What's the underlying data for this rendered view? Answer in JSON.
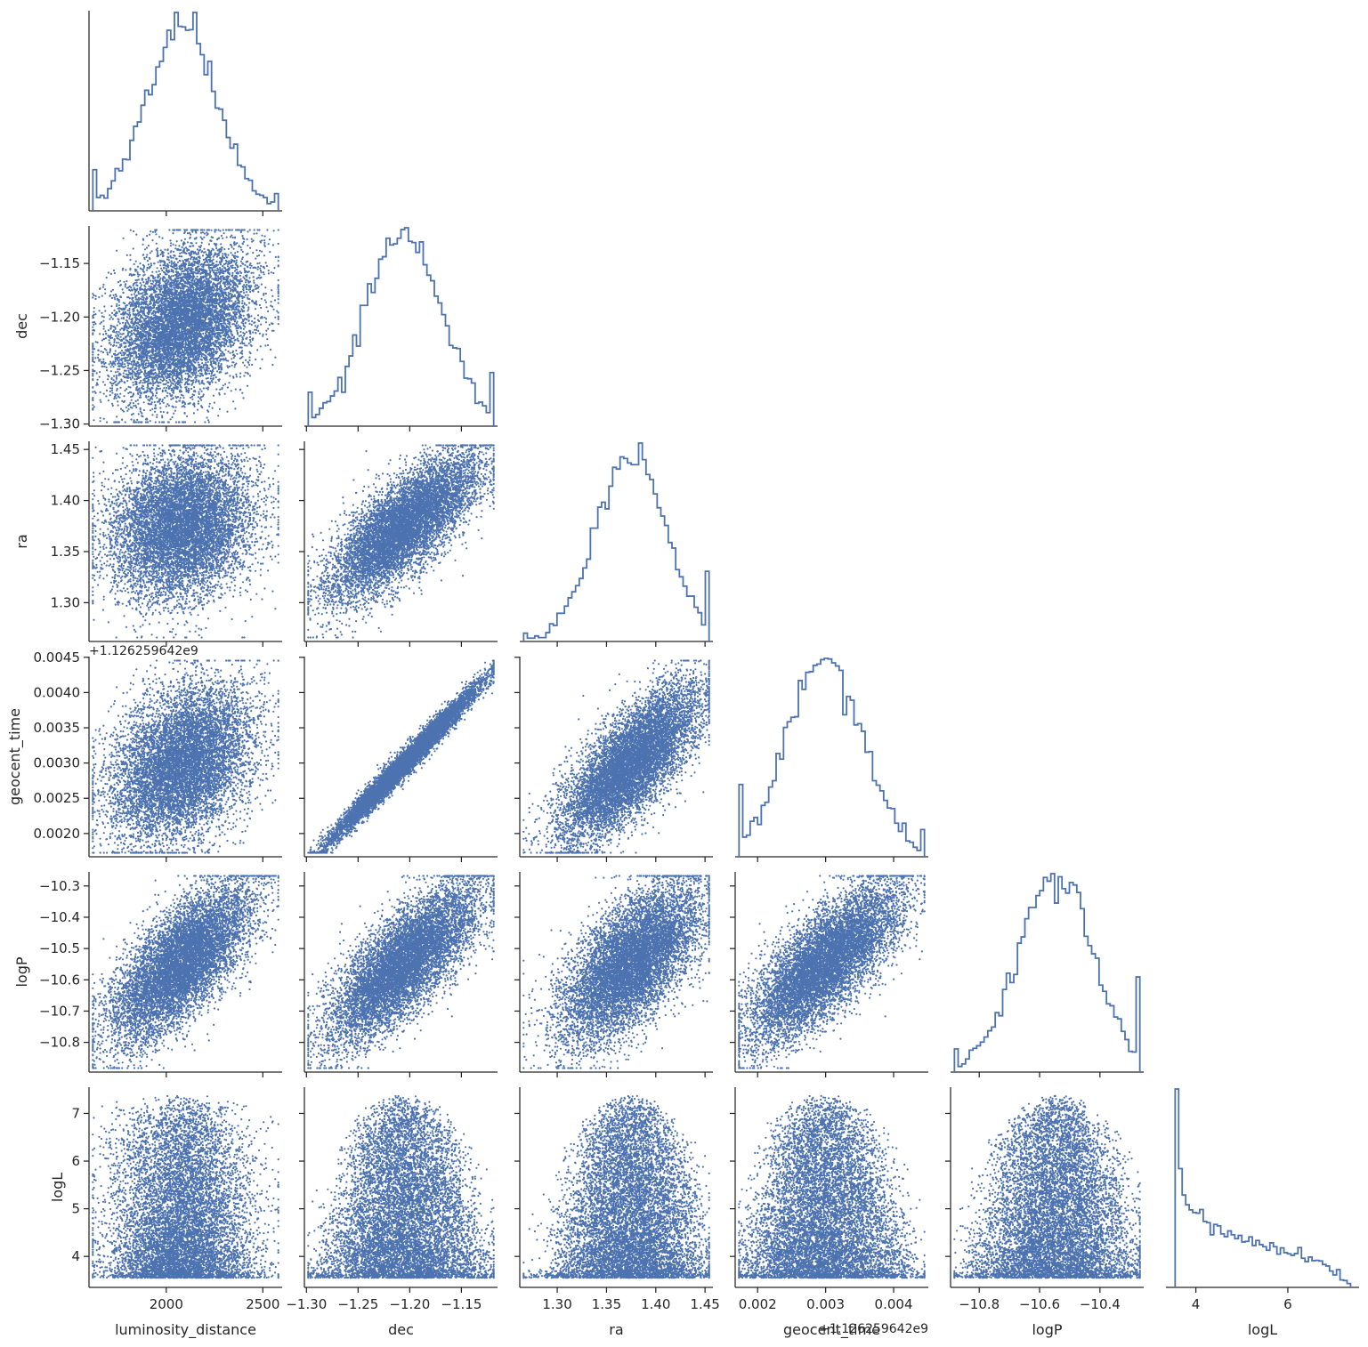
{
  "chart_data": {
    "type": "scatter",
    "title": "",
    "plot_kind": "corner (pair) plot: marginal step histograms on diagonal, scatter plots in lower triangle",
    "n_samples_estimate": 8000,
    "colors": {
      "series": "#4c72b0",
      "axis": "#262626",
      "background": "#ffffff"
    },
    "grid": false,
    "legend": null,
    "variables": [
      {
        "name": "luminosity_distance",
        "label": "luminosity_distance",
        "range": [
          1600,
          2600
        ],
        "ticks": [
          2000,
          2500
        ],
        "tick_labels": [
          "2000",
          "2500"
        ],
        "mean": 2080,
        "std": 180,
        "offset_label": ""
      },
      {
        "name": "dec",
        "label": "dec",
        "range": [
          -1.302,
          -1.115
        ],
        "ticks": [
          -1.3,
          -1.25,
          -1.2,
          -1.15
        ],
        "tick_labels": [
          "−1.30",
          "−1.25",
          "−1.20",
          "−1.15"
        ],
        "mean": -1.205,
        "std": 0.036,
        "offset_label": ""
      },
      {
        "name": "ra",
        "label": "ra",
        "range": [
          1.262,
          1.458
        ],
        "ticks": [
          1.3,
          1.35,
          1.4,
          1.45
        ],
        "tick_labels": [
          "1.30",
          "1.35",
          "1.40",
          "1.45"
        ],
        "mean": 1.375,
        "std": 0.035,
        "offset_label": ""
      },
      {
        "name": "geocent_time",
        "label": "geocent_time",
        "range": [
          0.00167,
          0.00451
        ],
        "ticks": [
          0.002,
          0.003,
          0.004
        ],
        "tick_labels": [
          "0.002",
          "0.003",
          "0.004"
        ],
        "y_ticks": [
          0.002,
          0.0025,
          0.003,
          0.0035,
          0.004,
          0.0045
        ],
        "y_tick_labels": [
          "0.0020",
          "0.0025",
          "0.0030",
          "0.0035",
          "0.0040",
          "0.0045"
        ],
        "mean": 0.003,
        "std": 0.00055,
        "offset_label": "+1.126259642e9"
      },
      {
        "name": "logP",
        "label": "logP",
        "range": [
          -10.895,
          -10.255
        ],
        "ticks": [
          -10.8,
          -10.6,
          -10.4
        ],
        "tick_labels": [
          "−10.8",
          "−10.6",
          "−10.4"
        ],
        "y_ticks": [
          -10.8,
          -10.7,
          -10.6,
          -10.5,
          -10.4,
          -10.3
        ],
        "y_tick_labels": [
          "−10.8",
          "−10.7",
          "−10.6",
          "−10.5",
          "−10.4",
          "−10.3"
        ],
        "mean": -10.545,
        "std": 0.125,
        "offset_label": ""
      },
      {
        "name": "logL",
        "label": "logL",
        "range": [
          3.35,
          7.55
        ],
        "ticks": [
          4,
          6
        ],
        "tick_labels": [
          "4",
          "6"
        ],
        "y_ticks": [
          4,
          5,
          6,
          7
        ],
        "y_tick_labels": [
          "4",
          "5",
          "6",
          "7"
        ],
        "mean": 4.9,
        "std": 0.95,
        "offset_label": ""
      }
    ],
    "correlations": [
      {
        "pair": [
          "dec",
          "ra"
        ],
        "r": 0.75
      },
      {
        "pair": [
          "dec",
          "geocent_time"
        ],
        "r": 0.99
      },
      {
        "pair": [
          "ra",
          "geocent_time"
        ],
        "r": 0.72
      },
      {
        "pair": [
          "luminosity_distance",
          "logP"
        ],
        "r": 0.55
      },
      {
        "pair": [
          "dec",
          "logP"
        ],
        "r": 0.78
      },
      {
        "pair": [
          "ra",
          "logP"
        ],
        "r": 0.6
      },
      {
        "pair": [
          "geocent_time",
          "logP"
        ],
        "r": 0.73
      },
      {
        "pair": [
          "luminosity_distance",
          "ra"
        ],
        "r": -0.05
      },
      {
        "pair": [
          "luminosity_distance",
          "dec"
        ],
        "r": -0.05
      },
      {
        "pair": [
          "luminosity_distance",
          "geocent_time"
        ],
        "r": -0.05
      }
    ],
    "logL_shape": "right-skewed, support approx 3.5 to 7.4, mode near 4.2; upper envelope peaks near centre of each other parameter",
    "histogram_bins": 50
  }
}
